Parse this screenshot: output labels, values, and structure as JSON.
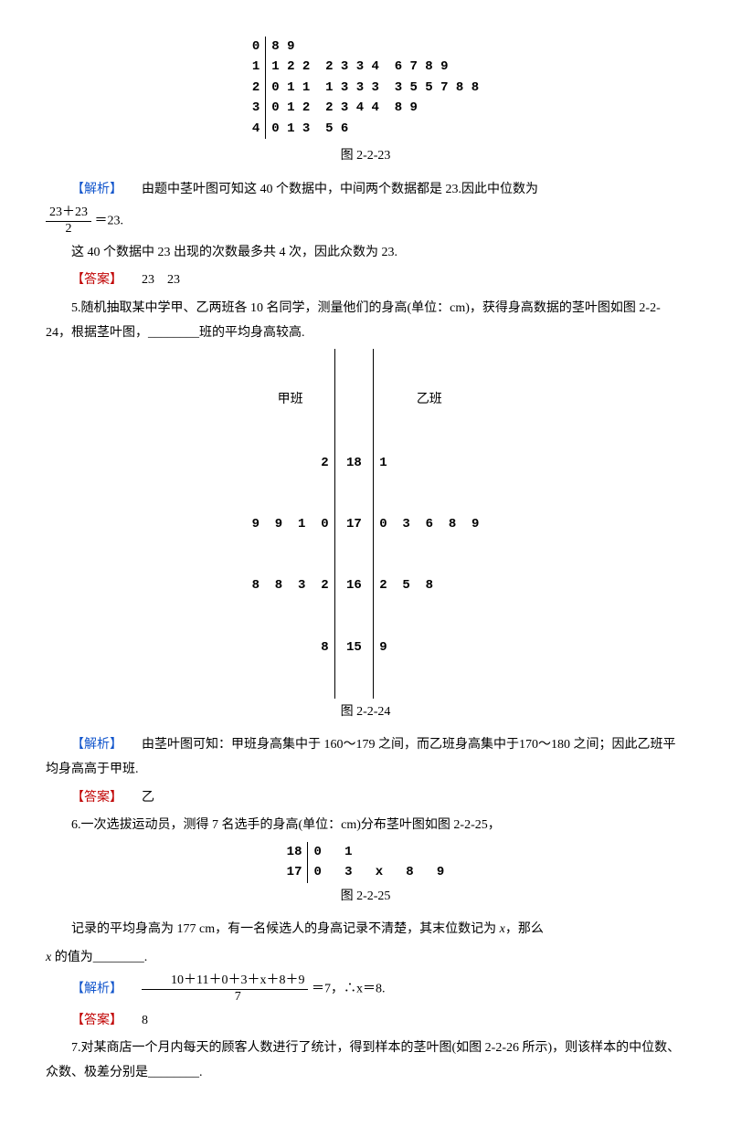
{
  "fig23": {
    "rows": [
      {
        "stem": "0",
        "leaf": "8 9"
      },
      {
        "stem": "1",
        "leaf": "1 2 2  2 3 3 4  6 7 8 9"
      },
      {
        "stem": "2",
        "leaf": "0 1 1  1 3 3 3  3 5 5 7 8 8"
      },
      {
        "stem": "3",
        "leaf": "0 1 2  2 3 4 4  8 9"
      },
      {
        "stem": "4",
        "leaf": "0 1 3  5 6"
      }
    ],
    "caption": "图 2-2-23"
  },
  "analysis1_a": "由题中茎叶图可知这 40 个数据中，中间两个数据都是 23.因此中位数为",
  "frac1_num": "23＋23",
  "frac1_den": "2",
  "analysis1_b": "＝23.",
  "analysis1_c": "这 40 个数据中 23 出现的次数最多共 4 次，因此众数为 23.",
  "answer1": "23　23",
  "q5": "5.随机抽取某中学甲、乙两班各 10 名同学，测量他们的身高(单位：cm)，获得身高数据的茎叶图如图 2-2-24，根据茎叶图，________班的平均身高较高.",
  "fig24": {
    "header_left": "甲班",
    "header_right": "乙班",
    "rows": [
      {
        "left": "2",
        "stem": "18",
        "right": "1"
      },
      {
        "left": "9  9  1  0",
        "stem": "17",
        "right": "0  3  6  8  9"
      },
      {
        "left": "8  8  3  2",
        "stem": "16",
        "right": "2  5  8"
      },
      {
        "left": "8",
        "stem": "15",
        "right": "9"
      }
    ],
    "caption": "图 2-2-24"
  },
  "analysis2": "由茎叶图可知：甲班身高集中于 160～179 之间，而乙班身高集中于170～180 之间；因此乙班平均身高高于甲班.",
  "answer2": "乙",
  "q6": "6.一次选拔运动员，测得 7 名选手的身高(单位：cm)分布茎叶图如图 2-2-25，",
  "fig25": {
    "rows": [
      {
        "stem": "18",
        "leaf": "0   1"
      },
      {
        "stem": "17",
        "leaf": "0   3   x   8   9"
      }
    ],
    "caption": "图 2-2-25"
  },
  "q6b_a": "记录的平均身高为 177 cm，有一名候选人的身高记录不清楚，其末位数记为 ",
  "q6b_b": "，那么",
  "q6b_c": " 的值为________.",
  "frac3_num": "10＋11＋0＋3＋x＋8＋9",
  "frac3_den": "7",
  "analysis3_eq": "＝7，∴x＝8.",
  "answer3": "8",
  "q7": "7.对某商店一个月内每天的顾客人数进行了统计，得到样本的茎叶图(如图 2-2-26 所示)，则该样本的中位数、众数、极差分别是________.",
  "labels": {
    "analysis": "【解析】",
    "answer": "【答案】",
    "x": "x"
  }
}
